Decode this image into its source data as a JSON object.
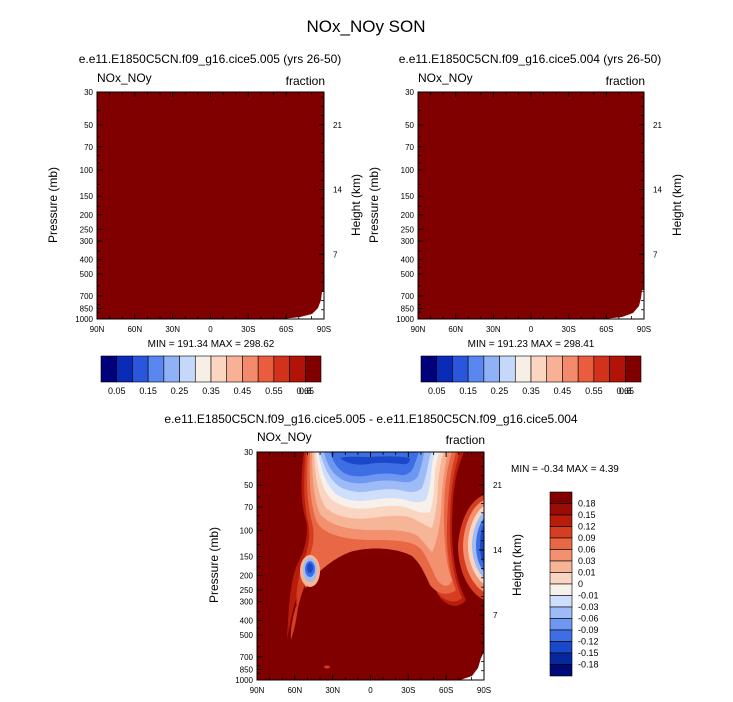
{
  "title": "NOx_NOy SON",
  "colors": {
    "fill": "#800000",
    "frame": "#000000",
    "abs_scale": [
      "#00007a",
      "#0a2ab8",
      "#2a56de",
      "#5a86ef",
      "#8fb1f6",
      "#c5d7fa",
      "#f7eee6",
      "#fbd5c0",
      "#f8b195",
      "#f48a6c",
      "#ea5c3e",
      "#d2311c",
      "#b11309",
      "#800000"
    ],
    "diff_scale": [
      "#000a78",
      "#06289c",
      "#1a48c8",
      "#3d6ee4",
      "#6d97f1",
      "#9dbbf7",
      "#cfdefb",
      "#f8f0ea",
      "#fad6c2",
      "#f7b597",
      "#f2906f",
      "#e86744",
      "#d63e22",
      "#b81d0c",
      "#9c0c06",
      "#800000"
    ]
  },
  "axes": {
    "ylabel_left": "Pressure (mb)",
    "ylabel_right": "Height (km)",
    "pressure_ticks": [
      "30",
      "50",
      "70",
      "100",
      "150",
      "200",
      "250",
      "300",
      "400",
      "500",
      "700",
      "850",
      "1000"
    ],
    "height_ticks": [
      "21",
      "14",
      "7"
    ],
    "lat_ticks": [
      "90N",
      "60N",
      "30N",
      "0",
      "30S",
      "60S",
      "90S"
    ]
  },
  "chart_data": [
    {
      "type": "heatmap",
      "id": "panel-005",
      "title": "e.e11.E1850C5CN.f09_g16.cice5.005 (yrs 26-50)",
      "left_label": "NOx_NOy",
      "right_label": "fraction",
      "x": [
        "90N",
        "60N",
        "30N",
        "0",
        "30S",
        "60S",
        "90S"
      ],
      "ylim": [
        1000,
        30
      ],
      "min_max_text": "MIN = 191.34   MAX = 298.62",
      "min": 191.34,
      "max": 298.62,
      "colorbar_labels": [
        "0.05",
        "0.15",
        "0.25",
        "0.35",
        "0.45",
        "0.55",
        "0.65",
        "0.8"
      ]
    },
    {
      "type": "heatmap",
      "id": "panel-004",
      "title": "e.e11.E1850C5CN.f09_g16.cice5.004 (yrs 26-50)",
      "left_label": "NOx_NOy",
      "right_label": "fraction",
      "x": [
        "90N",
        "60N",
        "30N",
        "0",
        "30S",
        "60S",
        "90S"
      ],
      "ylim": [
        1000,
        30
      ],
      "min_max_text": "MIN = 191.23   MAX = 298.41",
      "min": 191.23,
      "max": 298.41,
      "colorbar_labels": [
        "0.05",
        "0.15",
        "0.25",
        "0.35",
        "0.45",
        "0.55",
        "0.65",
        "0.8"
      ]
    },
    {
      "type": "heatmap",
      "id": "panel-diff",
      "title": "e.e11.E1850C5CN.f09_g16.cice5.005 - e.e11.E1850C5CN.f09_g16.cice5.004",
      "left_label": "NOx_NOy",
      "right_label": "fraction",
      "x": [
        "90N",
        "60N",
        "30N",
        "0",
        "30S",
        "60S",
        "90S"
      ],
      "ylim": [
        1000,
        30
      ],
      "min_max_text": "MIN =  -0.34   MAX =   4.39",
      "min": -0.34,
      "max": 4.39,
      "colorbar_labels": [
        "0.18",
        "0.15",
        "0.12",
        "0.09",
        "0.06",
        "0.03",
        "0.01",
        "0",
        "-0.01",
        "-0.03",
        "-0.06",
        "-0.09",
        "-0.12",
        "-0.15",
        "-0.18"
      ]
    }
  ]
}
